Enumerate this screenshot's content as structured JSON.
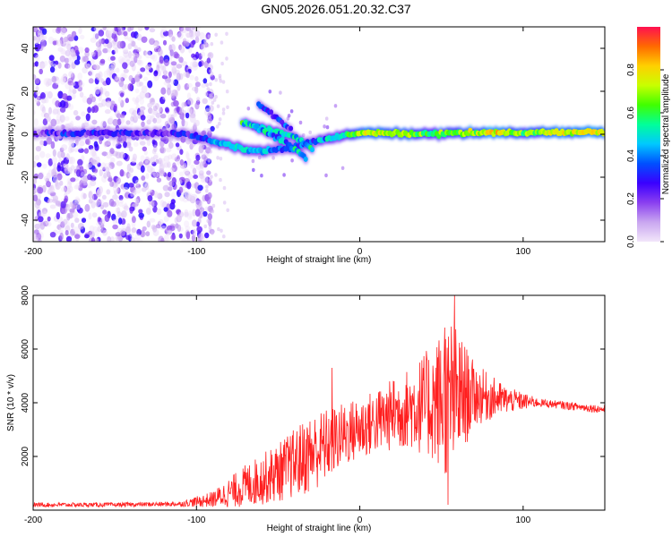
{
  "title": "GN05.2026.051.20.32.C37",
  "chart_data": [
    {
      "type": "heatmap",
      "name": "spectrogram",
      "xlabel": "Height of straight line (km)",
      "ylabel": "Frequency (Hz)",
      "xlim": [
        -200,
        150
      ],
      "ylim": [
        -50,
        50
      ],
      "xticks": [
        -200,
        -100,
        0,
        100
      ],
      "yticks": [
        -40,
        -20,
        0,
        20,
        40
      ],
      "colorbar": {
        "label": "Normalized spectral amplitude",
        "range": [
          0.0,
          1.0
        ],
        "ticks": [
          0.0,
          0.2,
          0.4,
          0.6,
          0.8
        ],
        "colors": [
          "#f2e6fa",
          "#c9a6f0",
          "#8a3ff0",
          "#3a00ff",
          "#0050ff",
          "#00c8ff",
          "#00ff9a",
          "#40ff00",
          "#c8ff00",
          "#ffd000",
          "#ff6a00",
          "#ff1050"
        ]
      },
      "ridge": [
        {
          "x": -200,
          "f": 0.5,
          "a": 0.22
        },
        {
          "x": -180,
          "f": 0.5,
          "a": 0.25
        },
        {
          "x": -160,
          "f": 0.5,
          "a": 0.27
        },
        {
          "x": -140,
          "f": 0.5,
          "a": 0.27
        },
        {
          "x": -120,
          "f": 0.5,
          "a": 0.24
        },
        {
          "x": -110,
          "f": 0.5,
          "a": 0.26
        },
        {
          "x": -100,
          "f": -1,
          "a": 0.32
        },
        {
          "x": -90,
          "f": -3,
          "a": 0.38
        },
        {
          "x": -80,
          "f": -5,
          "a": 0.45
        },
        {
          "x": -70,
          "f": -7,
          "a": 0.5
        },
        {
          "x": -60,
          "f": -8,
          "a": 0.42
        },
        {
          "x": -50,
          "f": -7,
          "a": 0.36
        },
        {
          "x": -40,
          "f": -6,
          "a": 0.33
        },
        {
          "x": -30,
          "f": -4,
          "a": 0.35
        },
        {
          "x": -20,
          "f": -2,
          "a": 0.45
        },
        {
          "x": -10,
          "f": -0.5,
          "a": 0.55
        },
        {
          "x": 0,
          "f": 0.5,
          "a": 0.7
        },
        {
          "x": 20,
          "f": 0.5,
          "a": 0.75
        },
        {
          "x": 40,
          "f": 0,
          "a": 0.6
        },
        {
          "x": 60,
          "f": 0.5,
          "a": 0.66
        },
        {
          "x": 80,
          "f": 1,
          "a": 0.75
        },
        {
          "x": 100,
          "f": 0.5,
          "a": 0.65
        },
        {
          "x": 120,
          "f": 1,
          "a": 0.72
        },
        {
          "x": 150,
          "f": 1,
          "a": 0.8
        }
      ],
      "branches": [
        {
          "name": "upper-branch",
          "points": [
            {
              "x": -72,
              "f": 5
            },
            {
              "x": -60,
              "f": 3
            },
            {
              "x": -45,
              "f": 0
            },
            {
              "x": -35,
              "f": -3
            },
            {
              "x": -28,
              "f": -8
            }
          ],
          "a": 0.48
        },
        {
          "name": "middle-branch",
          "points": [
            {
              "x": -65,
              "f": 4
            },
            {
              "x": -55,
              "f": 0
            },
            {
              "x": -45,
              "f": -4
            },
            {
              "x": -38,
              "f": -8
            },
            {
              "x": -32,
              "f": -12
            }
          ],
          "a": 0.42
        },
        {
          "name": "spur-branch",
          "points": [
            {
              "x": -62,
              "f": 14
            },
            {
              "x": -55,
              "f": 10
            },
            {
              "x": -48,
              "f": 6
            },
            {
              "x": -42,
              "f": 2
            }
          ],
          "a": 0.3
        }
      ],
      "noise_region": {
        "x_min": -200,
        "x_max": -90,
        "f_min": -50,
        "f_max": 50,
        "density": "high"
      },
      "sparse_noise_region": {
        "x_min": -95,
        "x_max": -80,
        "density": "low"
      }
    },
    {
      "type": "line",
      "name": "snr",
      "xlabel": "Height of straight line (km)",
      "ylabel": "SNR (10 * v/v)",
      "xlim": [
        -200,
        150
      ],
      "ylim": [
        0,
        8000
      ],
      "xticks": [
        -200,
        -100,
        0,
        100
      ],
      "yticks": [
        2000,
        4000,
        6000,
        8000
      ],
      "color": "#ff1f1f",
      "envelope": [
        {
          "x": -200,
          "base": 200,
          "amp": 80
        },
        {
          "x": -150,
          "base": 200,
          "amp": 80
        },
        {
          "x": -110,
          "base": 230,
          "amp": 90
        },
        {
          "x": -90,
          "base": 400,
          "amp": 300
        },
        {
          "x": -70,
          "base": 900,
          "amp": 800
        },
        {
          "x": -50,
          "base": 1400,
          "amp": 1100
        },
        {
          "x": -30,
          "base": 2100,
          "amp": 1500
        },
        {
          "x": -10,
          "base": 2800,
          "amp": 1200
        },
        {
          "x": 10,
          "base": 3300,
          "amp": 1200
        },
        {
          "x": 30,
          "base": 3800,
          "amp": 1500
        },
        {
          "x": 45,
          "base": 4000,
          "amp": 2200
        },
        {
          "x": 55,
          "base": 4200,
          "amp": 3200
        },
        {
          "x": 70,
          "base": 4300,
          "amp": 1200
        },
        {
          "x": 90,
          "base": 4100,
          "amp": 500
        },
        {
          "x": 110,
          "base": 4000,
          "amp": 150
        },
        {
          "x": 150,
          "base": 3750,
          "amp": 150
        }
      ],
      "peaks": [
        {
          "x": -17,
          "y": 5300
        },
        {
          "x": 21,
          "y": 4800
        },
        {
          "x": 52,
          "y": 6800
        },
        {
          "x": 58,
          "y": 8000
        },
        {
          "x": 54,
          "y": 200
        }
      ]
    }
  ]
}
